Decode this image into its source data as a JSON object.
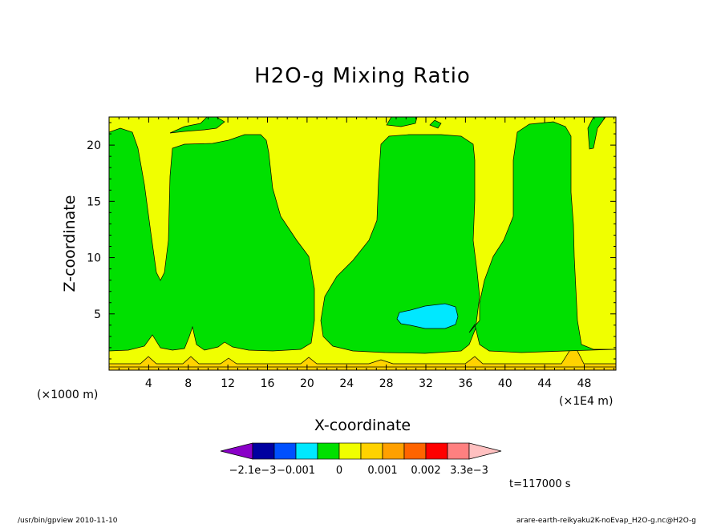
{
  "chart_data": {
    "type": "contour",
    "title": "H2O-g Mixing Ratio",
    "xlabel": "X-coordinate",
    "ylabel": "Z-coordinate",
    "x_unit_left": "(×1000 m)",
    "x_unit_right": "(×1E4 m)",
    "x_ticks": [
      "4",
      "8",
      "12",
      "16",
      "20",
      "24",
      "28",
      "32",
      "36",
      "40",
      "44",
      "48"
    ],
    "y_ticks": [
      "5",
      "10",
      "15",
      "20"
    ],
    "xlim": [
      0,
      51.2
    ],
    "ylim": [
      0,
      22.5
    ],
    "time_label": "t=117000 s",
    "colorbar": {
      "labels": [
        "−2.1e−3",
        "−0.001",
        "0",
        "0.001",
        "0.002",
        "3.3e−3"
      ],
      "colors": [
        "#8a00c8",
        "#0000a0",
        "#0050ff",
        "#00e8ff",
        "#00e000",
        "#f0ff00",
        "#ffd200",
        "#ffa000",
        "#ff6400",
        "#ff0000",
        "#ff8080",
        "#ffc0c0"
      ]
    },
    "colors": {
      "green": "#00e000",
      "yellow": "#f0ff00",
      "gold": "#ffd200",
      "cyan": "#00e8ff"
    },
    "footer_left": "/usr/bin/gpview   2010-11-10",
    "footer_right": "arare-earth-reikyaku2K-noEvap_H2O-g.nc@H2O-g"
  }
}
